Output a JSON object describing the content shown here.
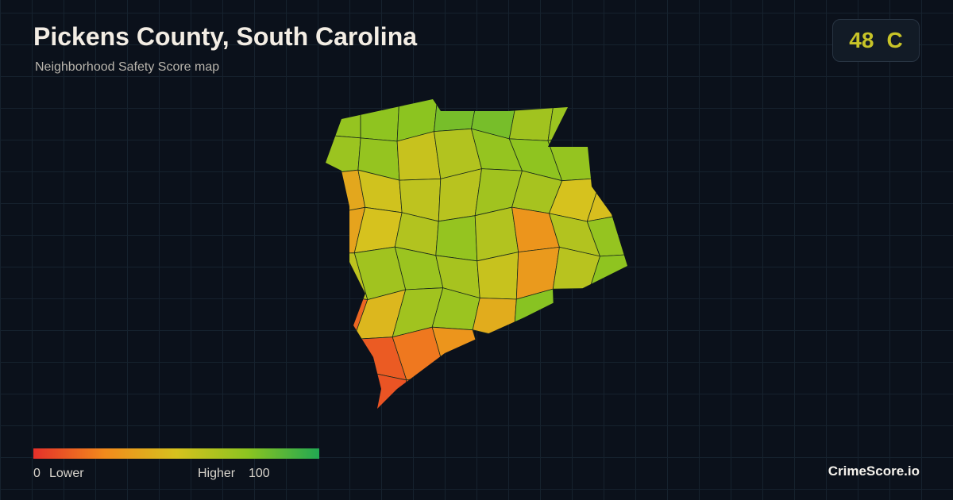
{
  "header": {
    "title": "Pickens County, South Carolina",
    "subtitle": "Neighborhood Safety Score map"
  },
  "badge": {
    "score": "48",
    "grade": "C"
  },
  "legend": {
    "min": 0,
    "max": 100,
    "min_label": "0",
    "low_label": "Lower",
    "high_label": "Higher",
    "max_label": "100",
    "colors": [
      "#e4302a",
      "#f28a1c",
      "#d6c21e",
      "#8cc420",
      "#22a852"
    ]
  },
  "map": {
    "regions": [
      72,
      74,
      75,
      80,
      80,
      68,
      70,
      70,
      72,
      55,
      62,
      72,
      74,
      72,
      38,
      52,
      58,
      60,
      68,
      66,
      50,
      48,
      36,
      50,
      62,
      72,
      62,
      30,
      62,
      72,
      58,
      68,
      70,
      66,
      55,
      32,
      60,
      74,
      15,
      45,
      68,
      70,
      40,
      76,
      12,
      20,
      30,
      10,
      15
    ]
  },
  "footer": {
    "brand": "CrimeScore.io"
  }
}
